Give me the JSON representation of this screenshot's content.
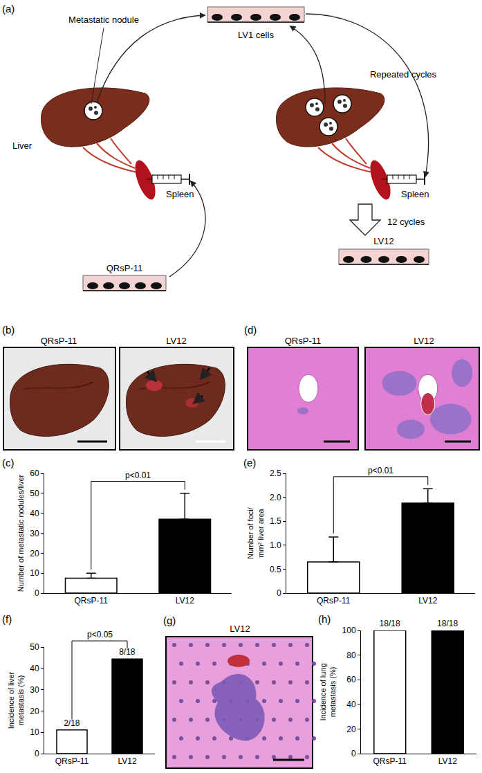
{
  "panels": {
    "a": {
      "label": "(a)",
      "dish_top": "LV1 cells",
      "nodule": "Metastatic nodule",
      "liver": "Liver",
      "spleen_labels": [
        "Spleen",
        "Spleen"
      ],
      "cycles_loop": "Repeated cycles",
      "start_cells": "QRsP-11",
      "cycles": "12 cycles",
      "end_cells": "LV12"
    },
    "b": {
      "label": "(b)",
      "images": [
        "QRsP-11",
        "LV12"
      ]
    },
    "d": {
      "label": "(d)",
      "images": [
        "QRsP-11",
        "LV12"
      ]
    },
    "g": {
      "label": "(g)",
      "image": "LV12"
    }
  },
  "chart_data": [
    {
      "panel": "(c)",
      "type": "bar",
      "categories": [
        "QRsP-11",
        "LV12"
      ],
      "values": [
        7.5,
        37
      ],
      "errors": [
        2.5,
        13
      ],
      "colors": [
        "#ffffff",
        "#000000"
      ],
      "ylabel": [
        "Number of metastatic nodules/liver"
      ],
      "ylim": [
        0,
        60
      ],
      "yticks": [
        0,
        10,
        20,
        30,
        40,
        50,
        60
      ],
      "annotations": [
        "p<0.01"
      ]
    },
    {
      "panel": "(e)",
      "type": "bar",
      "categories": [
        "QRsP-11",
        "LV12"
      ],
      "values": [
        0.65,
        1.88
      ],
      "errors": [
        0.52,
        0.3
      ],
      "colors": [
        "#ffffff",
        "#000000"
      ],
      "ylabel": [
        "Number of foci/",
        "mm² liver area"
      ],
      "ylim": [
        0,
        2.5
      ],
      "yticks": [
        0,
        0.5,
        {
          "value": 1,
          "label": "1.0"
        },
        1.5,
        {
          "value": 2,
          "label": "2.0"
        },
        2.5
      ],
      "annotations": [
        "p<0.01"
      ]
    },
    {
      "panel": "(f)",
      "type": "bar",
      "categories": [
        "QRsP-11",
        "LV12"
      ],
      "values": [
        11.1,
        44.4
      ],
      "value_labels": [
        "2/18",
        "8/18"
      ],
      "data_labels": true,
      "colors": [
        "#ffffff",
        "#000000"
      ],
      "ylabel": [
        "Incidence of liver",
        "metastasis (%)"
      ],
      "ylim": [
        0,
        50
      ],
      "yticks": [
        0,
        10,
        20,
        30,
        40,
        50
      ],
      "annotations": [
        "p<0.05"
      ]
    },
    {
      "panel": "(h)",
      "type": "bar",
      "categories": [
        "QRsP-11",
        "LV12"
      ],
      "values": [
        100,
        100
      ],
      "value_labels": [
        "18/18",
        "18/18"
      ],
      "data_labels": true,
      "colors": [
        "#ffffff",
        "#000000"
      ],
      "ylabel": [
        "Incidence of lung",
        "metastasis (%)"
      ],
      "ylim": [
        0,
        100
      ],
      "yticks": [
        0,
        20,
        40,
        60,
        80,
        100
      ]
    }
  ]
}
